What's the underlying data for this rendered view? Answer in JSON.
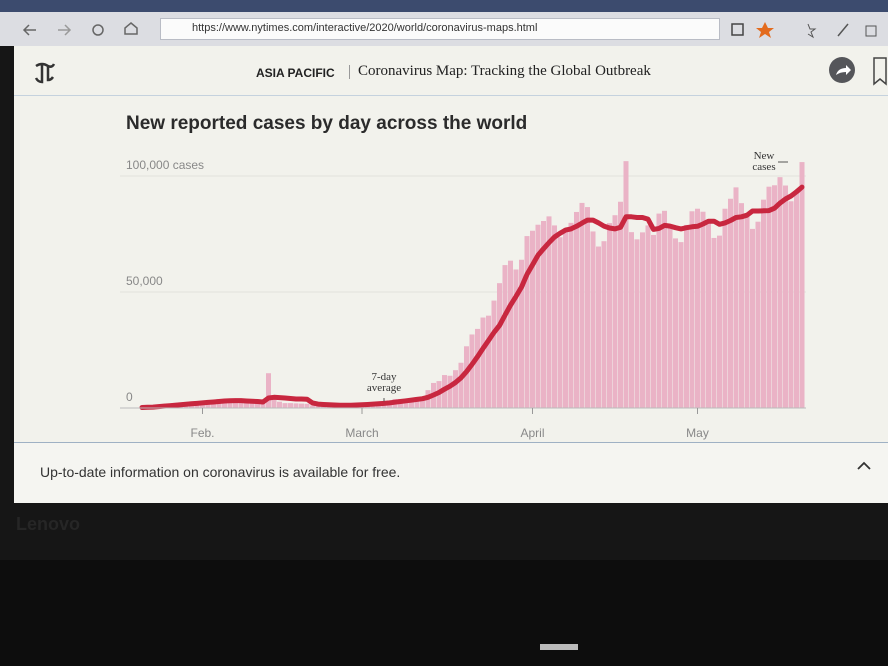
{
  "browser": {
    "url": "https://www.nytimes.com/interactive/2020/world/coronavirus-maps.html"
  },
  "header": {
    "section": "ASIA PACIFIC",
    "title": "Coronavirus Map: Tracking the Global Outbreak"
  },
  "chart_data": {
    "type": "bar",
    "title": "New reported cases by day across the world",
    "categories": [
      null,
      null,
      null,
      null,
      null,
      null,
      null,
      null,
      null,
      null,
      null,
      "Feb.",
      null,
      null,
      null,
      null,
      null,
      null,
      null,
      null,
      null,
      null,
      null,
      null,
      null,
      null,
      null,
      null,
      null,
      null,
      null,
      null,
      null,
      null,
      null,
      null,
      null,
      null,
      null,
      null,
      "March",
      null,
      null,
      null,
      null,
      null,
      null,
      null,
      null,
      null,
      null,
      null,
      null,
      null,
      null,
      null,
      null,
      null,
      null,
      null,
      null,
      null,
      null,
      null,
      null,
      null,
      null,
      null,
      null,
      null,
      null,
      "April",
      null,
      null,
      null,
      null,
      null,
      null,
      null,
      null,
      null,
      null,
      null,
      null,
      null,
      null,
      null,
      null,
      null,
      null,
      null,
      null,
      null,
      null,
      null,
      null,
      null,
      null,
      null,
      null,
      null,
      "May",
      null,
      null,
      null,
      null,
      null,
      null,
      null,
      null,
      null,
      null,
      null,
      null,
      null,
      null,
      null,
      null,
      null,
      null,
      null
    ],
    "series": [
      {
        "name": "New cases",
        "color": "#eab3c6",
        "values": [
          100,
          150,
          250,
          400,
          700,
          800,
          1000,
          1500,
          1700,
          2000,
          2100,
          2600,
          2800,
          3200,
          3900,
          3700,
          3200,
          3000,
          2700,
          2500,
          2000,
          2300,
          2100,
          15000,
          5100,
          2700,
          2100,
          2100,
          2000,
          1900,
          1800,
          1100,
          1000,
          1000,
          900,
          800,
          900,
          1100,
          1300,
          1800,
          1900,
          2000,
          2100,
          2300,
          2500,
          2800,
          3900,
          3900,
          3800,
          3800,
          4600,
          4800,
          7700,
          10800,
          11600,
          14200,
          13900,
          16300,
          19500,
          26600,
          31700,
          34100,
          39000,
          39800,
          46300,
          53800,
          61600,
          63500,
          59700,
          63900,
          74100,
          76400,
          79000,
          80600,
          82600,
          78700,
          73600,
          77500,
          79800,
          84500,
          88400,
          86600,
          76100,
          69600,
          71900,
          79700,
          83100,
          88900,
          106400,
          75800,
          72700,
          75700,
          78700,
          74600,
          83800,
          85000,
          77400,
          73100,
          71500,
          78900,
          84800,
          85900,
          84600,
          79900,
          73300,
          74300,
          85900,
          90200,
          95100,
          88300,
          83700,
          77200,
          80300,
          89800,
          95400,
          96000,
          99500,
          95900,
          89100,
          93900,
          106000
        ]
      },
      {
        "name": "7-day average",
        "color": "#c8273f",
        "values": [
          200,
          300,
          400,
          600,
          800,
          1000,
          1200,
          1400,
          1600,
          1800,
          2000,
          2200,
          2400,
          2600,
          2800,
          3000,
          3100,
          3200,
          3200,
          3000,
          2900,
          2800,
          2600,
          4300,
          4600,
          4500,
          4300,
          4100,
          3900,
          3900,
          3800,
          2200,
          1700,
          1500,
          1400,
          1300,
          1200,
          1200,
          1200,
          1300,
          1400,
          1500,
          1700,
          1800,
          2000,
          2200,
          2500,
          2800,
          3100,
          3400,
          3700,
          4000,
          4600,
          5600,
          6700,
          8100,
          9400,
          11000,
          13000,
          15700,
          18800,
          22100,
          25700,
          29100,
          32600,
          35600,
          40000,
          44300,
          48100,
          52100,
          57600,
          61700,
          65800,
          68600,
          71300,
          73700,
          75300,
          76700,
          77200,
          78300,
          79700,
          81000,
          81000,
          79800,
          78400,
          77600,
          77200,
          77900,
          82400,
          82400,
          82100,
          82100,
          81400,
          77000,
          77400,
          78700,
          78400,
          77700,
          77200,
          77700,
          78100,
          78300,
          79300,
          80500,
          80500,
          79200,
          79800,
          80800,
          82100,
          82400,
          83100,
          84900,
          84900,
          85000,
          85100,
          86100,
          88300,
          90100,
          91400,
          93200,
          95200
        ]
      }
    ],
    "ylim": [
      0,
      110000
    ],
    "yticks": [
      0,
      {
        "value": 50000,
        "label": "50,000"
      },
      {
        "value": 100000,
        "label": "100,000 cases"
      }
    ],
    "grid": true
  },
  "footer": {
    "text": "Up-to-date information on coronavirus is available for free."
  },
  "device": {
    "brand": "Lenovo"
  }
}
